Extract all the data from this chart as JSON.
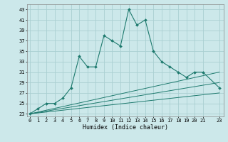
{
  "xlabel": "Humidex (Indice chaleur)",
  "bg_color": "#cce8ea",
  "grid_color": "#aacfd2",
  "line_color": "#1e7a6e",
  "x_main": [
    0,
    1,
    2,
    3,
    4,
    5,
    6,
    7,
    8,
    9,
    10,
    11,
    12,
    13,
    14,
    15,
    16,
    17,
    18,
    19,
    20,
    21,
    23
  ],
  "y_main": [
    23,
    24,
    25,
    25,
    26,
    28,
    34,
    32,
    32,
    38,
    37,
    36,
    43,
    40,
    41,
    35,
    33,
    32,
    31,
    30,
    31,
    31,
    28
  ],
  "ref_lines": [
    {
      "x": [
        0,
        23
      ],
      "y": [
        23,
        31
      ]
    },
    {
      "x": [
        0,
        23
      ],
      "y": [
        23,
        29
      ]
    },
    {
      "x": [
        0,
        23
      ],
      "y": [
        23,
        27
      ]
    }
  ],
  "xlim": [
    -0.3,
    23.5
  ],
  "ylim": [
    22.5,
    44
  ],
  "yticks": [
    23,
    25,
    27,
    29,
    31,
    33,
    35,
    37,
    39,
    41,
    43
  ],
  "xticks": [
    0,
    1,
    2,
    3,
    4,
    5,
    6,
    7,
    8,
    9,
    10,
    11,
    12,
    13,
    14,
    15,
    16,
    17,
    18,
    19,
    20,
    21,
    23
  ],
  "tick_fontsize": 5.0,
  "xlabel_fontsize": 6.0
}
